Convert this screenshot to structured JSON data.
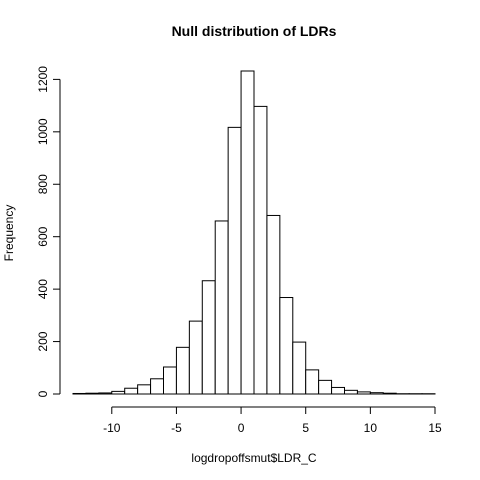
{
  "chart_data": {
    "type": "bar",
    "title": "Null distribution of LDRs",
    "xlabel": "logdropoffsmut$LDR_C",
    "ylabel": "Frequency",
    "bin_width": 1,
    "x_bin_edges": [
      -13,
      -12,
      -11,
      -10,
      -9,
      -8,
      -7,
      -6,
      -5,
      -4,
      -3,
      -2,
      -1,
      0,
      1,
      2,
      3,
      4,
      5,
      6,
      7,
      8,
      9,
      10,
      11,
      12,
      13,
      14,
      15
    ],
    "values": [
      2,
      3,
      4,
      10,
      22,
      35,
      58,
      103,
      178,
      278,
      432,
      660,
      1017,
      1232,
      1097,
      681,
      368,
      198,
      92,
      52,
      25,
      14,
      8,
      5,
      3,
      1,
      1,
      1
    ],
    "xlim": [
      -13,
      15
    ],
    "ylim": [
      0,
      1232
    ],
    "x_ticks": [
      -10,
      -5,
      0,
      5,
      10,
      15
    ],
    "y_ticks": [
      0,
      200,
      400,
      600,
      800,
      1000,
      1200
    ],
    "grid": false,
    "colors": {
      "bar_fill": "#ffffff",
      "bar_stroke": "#000000",
      "axis": "#000000"
    }
  }
}
